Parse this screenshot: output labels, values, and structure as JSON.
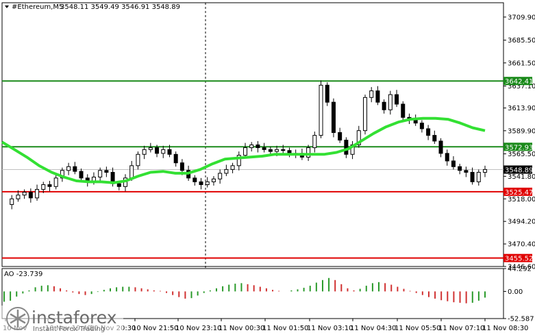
{
  "header": {
    "symbol": "#Ethereum,M5",
    "ohlc": "3548.11 3549.49 3546.91 3548.89"
  },
  "ao_header": "AO -23.739",
  "watermark": {
    "brand": "instaforex",
    "subtitle": "Instant Forex Trading"
  },
  "colors": {
    "bull_candle": "#ffffff",
    "bear_candle": "#000000",
    "moving_average": "#33e033",
    "support_line": "#e00000",
    "resistance_line": "#1a8a1a",
    "ao_up": "#2a9a2a",
    "ao_down": "#d03030",
    "current_price_tag": "#000000"
  },
  "chart_data": {
    "type": "candlestick",
    "title": "#Ethereum,M5",
    "price_axis": {
      "ticks": [
        "3709.90",
        "3685.50",
        "3661.50",
        "3637.10",
        "3613.90",
        "3589.90",
        "3565.50",
        "3541.80",
        "3518.00",
        "3494.20",
        "3470.40",
        "3446.60"
      ],
      "range": [
        3446.6,
        3725
      ]
    },
    "time_axis": {
      "ticks": [
        "10 Nov",
        "10 Nov 19:40",
        "10 Nov 20:30",
        "10 Nov 21:50",
        "10 Nov 23:10",
        "11 Nov 00:30",
        "11 Nov 01:50",
        "11 Nov 03:10",
        "11 Nov 04:30",
        "11 Nov 05:50",
        "11 Nov 07:10",
        "11 Nov 08:30"
      ]
    },
    "current_price": "3548.89",
    "levels": [
      {
        "value": 3642.41,
        "label": "3642.41",
        "type": "resistance"
      },
      {
        "value": 3572.93,
        "label": "3572.93",
        "type": "resistance"
      },
      {
        "value": 3525.47,
        "label": "3525.47",
        "type": "support"
      },
      {
        "value": 3455.52,
        "label": "3455.52",
        "type": "support"
      }
    ],
    "price_series": [
      3512,
      3518,
      3522,
      3525,
      3519,
      3528,
      3533,
      3531,
      3540,
      3548,
      3552,
      3547,
      3540,
      3536,
      3541,
      3548,
      3546,
      3534,
      3531,
      3540,
      3553,
      3565,
      3570,
      3572,
      3566,
      3570,
      3565,
      3556,
      3548,
      3540,
      3536,
      3533,
      3536,
      3539,
      3545,
      3549,
      3553,
      3564,
      3572,
      3575,
      3572,
      3570,
      3568,
      3570,
      3569,
      3566,
      3566,
      3562,
      3572,
      3585,
      3638,
      3620,
      3588,
      3580,
      3565,
      3575,
      3590,
      3625,
      3632,
      3620,
      3612,
      3628,
      3618,
      3604,
      3602,
      3598,
      3592,
      3585,
      3579,
      3566,
      3558,
      3552,
      3548,
      3546,
      3536,
      3546,
      3549
    ],
    "ma_series": [
      3578,
      3570,
      3562,
      3553,
      3546,
      3541,
      3537,
      3536,
      3536,
      3535,
      3537,
      3542,
      3546,
      3547,
      3545,
      3545,
      3549,
      3555,
      3560,
      3561,
      3562,
      3563,
      3565,
      3565,
      3565,
      3565,
      3565,
      3567,
      3571,
      3579,
      3587,
      3594,
      3599,
      3602,
      3603,
      3603,
      3602,
      3598,
      3593,
      3590
    ],
    "ao": {
      "label": "AO -23.739",
      "ticks": [
        "44.292",
        "0.00",
        "-52.587"
      ],
      "range": [
        -52.587,
        44.292
      ],
      "values": [
        -20,
        -18,
        -10,
        -4,
        2,
        8,
        11,
        12,
        10,
        6,
        2,
        -2,
        -5,
        -7,
        -5,
        -1,
        3,
        6,
        8,
        9,
        9,
        8,
        6,
        4,
        2,
        1,
        -3,
        -7,
        -11,
        -14,
        -13,
        -8,
        -3,
        2,
        6,
        10,
        13,
        15,
        16,
        14,
        12,
        9,
        6,
        3,
        1,
        0,
        2,
        4,
        7,
        11,
        17,
        22,
        26,
        22,
        14,
        6,
        2,
        5,
        11,
        16,
        18,
        16,
        13,
        9,
        5,
        1,
        -3,
        -7,
        -11,
        -14,
        -17,
        -19,
        -21,
        -22,
        -23,
        -22,
        -18,
        -12
      ]
    }
  }
}
